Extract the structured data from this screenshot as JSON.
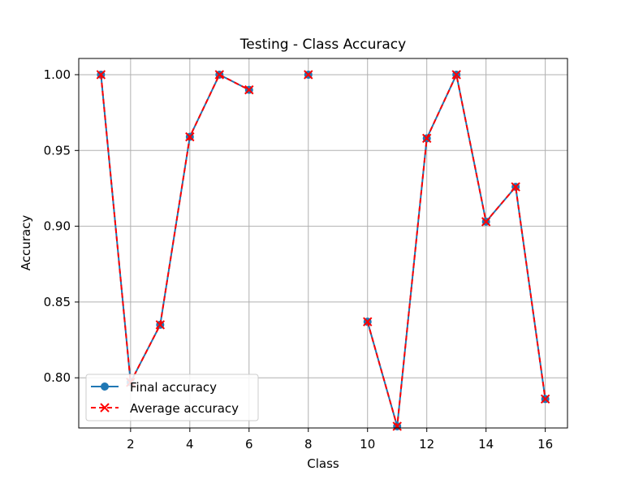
{
  "chart_data": {
    "type": "line",
    "title": "Testing - Class Accuracy",
    "xlabel": "Class",
    "ylabel": "Accuracy",
    "xlim": [
      0.25,
      16.75
    ],
    "ylim": [
      0.7669,
      1.0107
    ],
    "xticks": [
      2,
      4,
      6,
      8,
      10,
      12,
      14,
      16
    ],
    "xtick_labels": [
      "2",
      "4",
      "6",
      "8",
      "10",
      "12",
      "14",
      "16"
    ],
    "yticks": [
      0.8,
      0.85,
      0.9,
      0.95,
      1.0
    ],
    "ytick_labels": [
      "0.80",
      "0.85",
      "0.90",
      "0.95",
      "1.00"
    ],
    "grid": true,
    "legend_position": "lower-left",
    "series": [
      {
        "name": "Final accuracy",
        "color": "#1f77b4",
        "marker": "circle",
        "linestyle": "solid",
        "x": [
          1,
          2,
          3,
          4,
          5,
          6,
          7,
          8,
          9,
          10,
          11,
          12,
          13,
          14,
          15,
          16
        ],
        "y": [
          1.0,
          0.797,
          0.835,
          0.959,
          1.0,
          0.99,
          null,
          1.0,
          null,
          0.837,
          0.768,
          0.958,
          1.0,
          0.903,
          0.926,
          0.786
        ]
      },
      {
        "name": "Average accuracy",
        "color": "#ff0000",
        "marker": "x",
        "linestyle": "dashed",
        "x": [
          1,
          2,
          3,
          4,
          5,
          6,
          7,
          8,
          9,
          10,
          11,
          12,
          13,
          14,
          15,
          16
        ],
        "y": [
          1.0,
          0.797,
          0.835,
          0.959,
          1.0,
          0.99,
          null,
          1.0,
          null,
          0.837,
          0.768,
          0.958,
          1.0,
          0.903,
          0.926,
          0.786
        ]
      }
    ]
  }
}
